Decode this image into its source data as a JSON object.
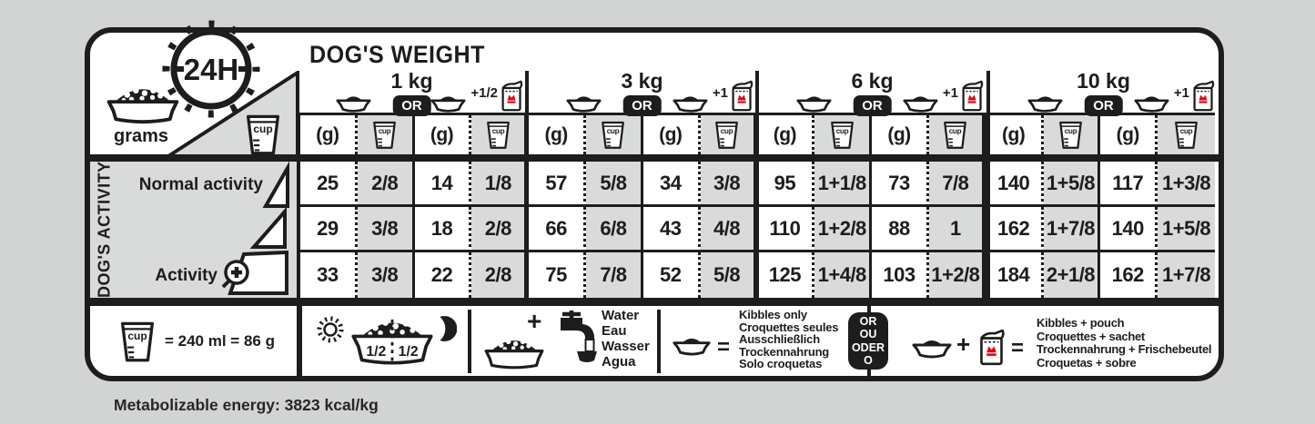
{
  "labels": {
    "cup": "cup",
    "hours": "24H",
    "grams": "grams"
  },
  "header": {
    "title": "DOG'S WEIGHT"
  },
  "weight_groups": [
    {
      "label": "1 kg",
      "or_label": "OR",
      "add_label": "+1/2"
    },
    {
      "label": "3 kg",
      "or_label": "OR",
      "add_label": "+1"
    },
    {
      "label": "6 kg",
      "or_label": "OR",
      "add_label": "+1"
    },
    {
      "label": "10 kg",
      "or_label": "OR",
      "add_label": "+1"
    }
  ],
  "table": {
    "gram_header": "(g)",
    "rows": [
      {
        "label": "Normal activity",
        "cells": [
          "25",
          "2/8",
          "14",
          "1/8",
          "57",
          "5/8",
          "34",
          "3/8",
          "95",
          "1+1/8",
          "73",
          "7/8",
          "140",
          "1+5/8",
          "117",
          "1+3/8"
        ]
      },
      {
        "label": "",
        "cells": [
          "29",
          "3/8",
          "18",
          "2/8",
          "66",
          "6/8",
          "43",
          "4/8",
          "110",
          "1+2/8",
          "88",
          "1",
          "162",
          "1+7/8",
          "140",
          "1+5/8"
        ]
      },
      {
        "label": "Activity",
        "cells": [
          "33",
          "3/8",
          "22",
          "2/8",
          "75",
          "7/8",
          "52",
          "5/8",
          "125",
          "1+4/8",
          "103",
          "1+2/8",
          "184",
          "2+1/8",
          "162",
          "1+7/8"
        ]
      }
    ]
  },
  "activity": {
    "axis_label": "DOG'S ACTIVITY",
    "normal_label": "Normal activity",
    "active_label": "Activity"
  },
  "legend": {
    "cup_equals": "= 240 ml = 86 g",
    "half_left": "1/2",
    "half_right": "1/2",
    "plus_sign": "+",
    "equals_sign": "=",
    "water_lines": [
      "Water",
      "Eau",
      "Wasser",
      "Agua"
    ],
    "kibbles_only_lines": [
      "Kibbles only",
      "Croquettes seules",
      "Ausschließlich",
      "Trockennahrung",
      "Solo croquetas"
    ],
    "or_badge_lines": [
      "OR",
      "OU",
      "ODER",
      "O"
    ],
    "kibbles_pouch_lines": [
      "Kibbles + pouch",
      "Croquettes + sachet",
      "Trockennahrung + Frischebeutel",
      "Croquetas + sobre"
    ]
  },
  "footer": {
    "energy": "Metabolizable energy: 3823 kcal/kg"
  },
  "colors": {
    "ink": "#1d1d1b",
    "cell_gray": "#d9dbda",
    "page_bg": "#d2d4d3",
    "crown_red": "#e30613"
  }
}
